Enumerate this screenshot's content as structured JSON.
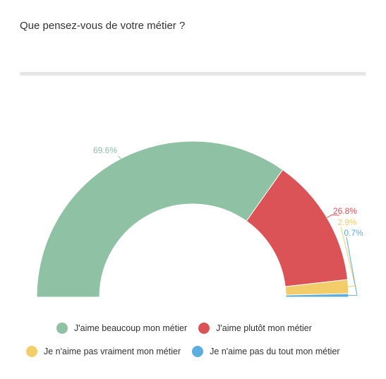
{
  "title": "Que pensez-vous de votre métier ?",
  "chart_data": {
    "type": "pie",
    "variant": "semi-donut",
    "title": "Que pensez-vous de votre métier ?",
    "series": [
      {
        "name": "J'aime beaucoup mon métier",
        "value": 69.6,
        "label": "69.6%",
        "color": "#8fc1a5"
      },
      {
        "name": "J'aime plutôt mon métier",
        "value": 26.8,
        "label": "26.8%",
        "color": "#dc5357"
      },
      {
        "name": "Je n'aime pas vraiment mon métier",
        "value": 2.9,
        "label": "2.9%",
        "color": "#f3cd6a"
      },
      {
        "name": "Je n'aime pas du tout mon métier",
        "value": 0.7,
        "label": "0.7%",
        "color": "#5baede"
      }
    ],
    "legend_position": "bottom"
  }
}
